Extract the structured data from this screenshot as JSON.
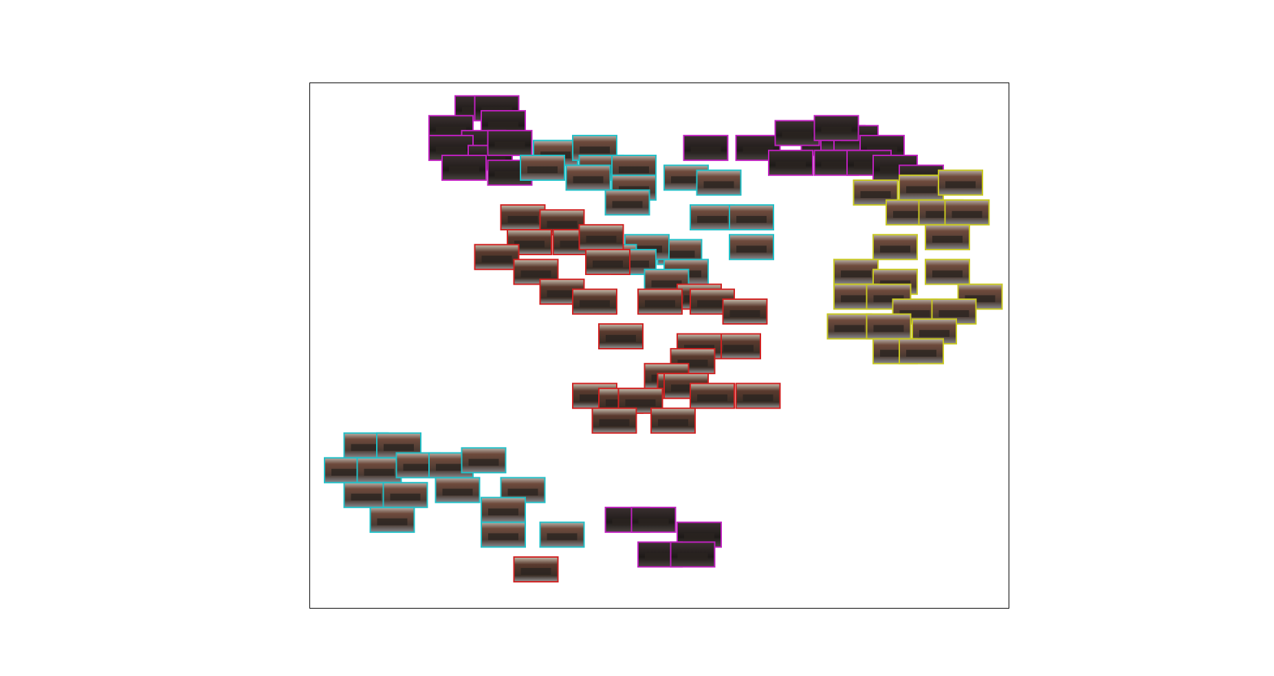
{
  "chart_data": {
    "type": "scatter",
    "title": "",
    "xlabel": "",
    "ylabel": "",
    "xlim": [
      0,
      100
    ],
    "ylim": [
      0,
      100
    ],
    "grid": false,
    "axes_ticks": false,
    "marker": "image-thumbnail",
    "colors": {
      "magenta": "#c020c0",
      "cyan": "#20c0c8",
      "red": "#d02020",
      "yellow": "#c8c820"
    },
    "series": [
      {
        "color_key": "magenta",
        "points": [
          [
            22,
            98
          ],
          [
            25,
            98
          ],
          [
            18,
            94
          ],
          [
            26,
            95
          ],
          [
            23,
            91
          ],
          [
            18,
            90
          ],
          [
            24,
            88
          ],
          [
            27,
            91
          ],
          [
            20,
            86
          ],
          [
            27,
            85
          ],
          [
            57,
            90
          ],
          [
            65,
            90
          ],
          [
            75,
            91
          ],
          [
            71,
            93
          ],
          [
            78,
            92
          ],
          [
            80,
            92
          ],
          [
            84,
            90
          ],
          [
            77,
            94
          ],
          [
            70,
            87
          ],
          [
            77,
            87
          ],
          [
            82,
            87
          ],
          [
            86,
            86
          ],
          [
            90,
            84
          ],
          [
            45,
            15
          ],
          [
            49,
            15
          ],
          [
            56,
            12
          ],
          [
            50,
            8
          ],
          [
            55,
            8
          ]
        ]
      },
      {
        "color_key": "cyan",
        "points": [
          [
            34,
            89
          ],
          [
            40,
            90
          ],
          [
            32,
            86
          ],
          [
            41,
            86
          ],
          [
            46,
            86
          ],
          [
            39,
            84
          ],
          [
            46,
            82
          ],
          [
            54,
            84
          ],
          [
            59,
            83
          ],
          [
            45,
            79
          ],
          [
            58,
            76
          ],
          [
            64,
            76
          ],
          [
            53,
            69
          ],
          [
            48,
            70
          ],
          [
            43,
            68
          ],
          [
            46,
            67
          ],
          [
            54,
            65
          ],
          [
            51,
            63
          ],
          [
            64,
            70
          ],
          [
            5,
            30
          ],
          [
            10,
            30
          ],
          [
            2,
            25
          ],
          [
            7,
            25
          ],
          [
            13,
            26
          ],
          [
            18,
            26
          ],
          [
            23,
            27
          ],
          [
            5,
            20
          ],
          [
            11,
            20
          ],
          [
            19,
            21
          ],
          [
            29,
            21
          ],
          [
            26,
            17
          ],
          [
            9,
            15
          ],
          [
            26,
            12
          ],
          [
            35,
            12
          ]
        ]
      },
      {
        "color_key": "red",
        "points": [
          [
            29,
            76
          ],
          [
            35,
            75
          ],
          [
            30,
            71
          ],
          [
            37,
            71
          ],
          [
            41,
            72
          ],
          [
            25,
            68
          ],
          [
            31,
            65
          ],
          [
            42,
            67
          ],
          [
            35,
            61
          ],
          [
            40,
            59
          ],
          [
            56,
            60
          ],
          [
            50,
            59
          ],
          [
            58,
            59
          ],
          [
            63,
            57
          ],
          [
            62,
            50
          ],
          [
            44,
            52
          ],
          [
            56,
            50
          ],
          [
            55,
            47
          ],
          [
            51,
            44
          ],
          [
            53,
            42
          ],
          [
            40,
            40
          ],
          [
            44,
            39
          ],
          [
            47,
            39
          ],
          [
            54,
            42
          ],
          [
            58,
            40
          ],
          [
            43,
            35
          ],
          [
            52,
            35
          ],
          [
            65,
            40
          ],
          [
            31,
            5
          ]
        ]
      },
      {
        "color_key": "yellow",
        "points": [
          [
            90,
            82
          ],
          [
            96,
            83
          ],
          [
            83,
            81
          ],
          [
            88,
            77
          ],
          [
            93,
            77
          ],
          [
            97,
            77
          ],
          [
            94,
            72
          ],
          [
            86,
            70
          ],
          [
            80,
            65
          ],
          [
            86,
            63
          ],
          [
            94,
            65
          ],
          [
            80,
            60
          ],
          [
            85,
            60
          ],
          [
            99,
            60
          ],
          [
            89,
            57
          ],
          [
            95,
            57
          ],
          [
            79,
            54
          ],
          [
            85,
            54
          ],
          [
            92,
            53
          ],
          [
            86,
            49
          ],
          [
            90,
            49
          ]
        ]
      }
    ]
  }
}
